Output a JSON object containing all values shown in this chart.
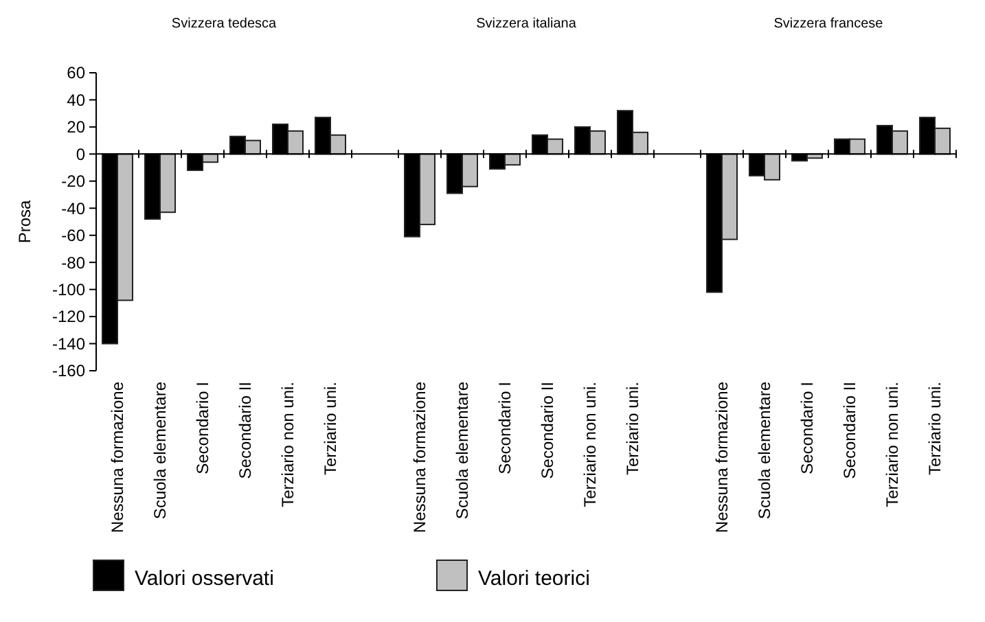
{
  "chart_data": [
    {
      "type": "bar",
      "title": "Svizzera tedesca",
      "ylabel": "Prosa",
      "categories": [
        "Nessuna formazione",
        "Scuola elementare",
        "Secondario I",
        "Secondario II",
        "Terziario non uni.",
        "Terziario uni."
      ],
      "ylim": [
        -160,
        60
      ],
      "yticks": [
        -160,
        -140,
        -120,
        -100,
        -80,
        -60,
        -40,
        -20,
        0,
        20,
        40,
        60
      ],
      "legend": "bottom",
      "series": [
        {
          "name": "Valori osservati",
          "color": "#000000",
          "values": [
            -140,
            -48,
            -12,
            13,
            22,
            27
          ]
        },
        {
          "name": "Valori teorici",
          "color": "#c0c0c0",
          "values": [
            -108,
            -43,
            -6,
            10,
            17,
            14
          ]
        }
      ]
    },
    {
      "type": "bar",
      "title": "Svizzera italiana",
      "categories": [
        "Nessuna formazione",
        "Scuola elementare",
        "Secondario I",
        "Secondario II",
        "Terziario non uni.",
        "Terziario uni."
      ],
      "ylim": [
        -160,
        60
      ],
      "tick_labels": "x",
      "series": [
        {
          "color": "#000000",
          "values": [
            -61,
            -29,
            -11,
            14,
            20,
            32
          ]
        },
        {
          "color": "#c0c0c0",
          "values": [
            -52,
            -24,
            -8,
            11,
            17,
            16
          ]
        }
      ]
    },
    {
      "type": "bar",
      "title": "Svizzera francese",
      "categories": [
        "Nessuna formazione",
        "Scuola elementare",
        "Secondario I",
        "Secondario II",
        "Terziario non uni.",
        "Terziario uni."
      ],
      "ylim": [
        -160,
        60
      ],
      "tick_labels": "x",
      "series": [
        {
          "color": "#000000",
          "values": [
            -102,
            -16,
            -5,
            11,
            21,
            27
          ]
        },
        {
          "color": "#c0c0c0",
          "values": [
            -63,
            -19,
            -3,
            11,
            17,
            19
          ]
        }
      ]
    }
  ]
}
